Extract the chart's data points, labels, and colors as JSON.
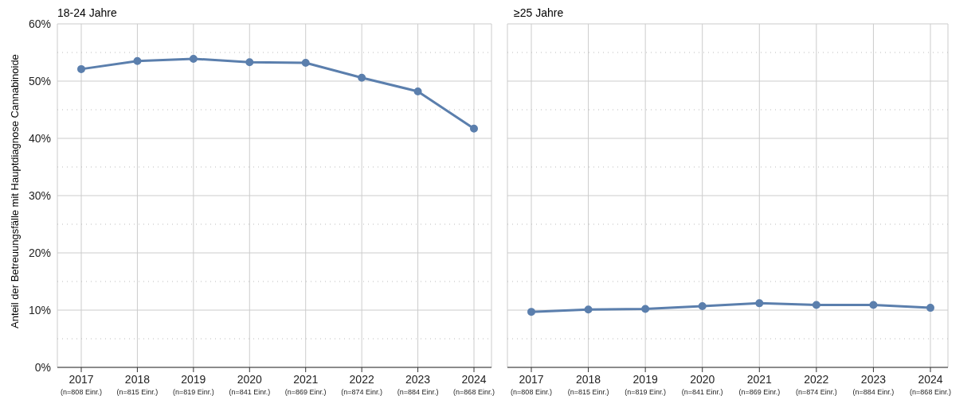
{
  "chart_data": [
    {
      "type": "line",
      "title": "18-24 Jahre",
      "ylabel": "Anteil der Betreuungsfälle mit Hauptdiagnose Cannabinoide",
      "categories": [
        "2017 (n=808 Einr.)",
        "2018 (n=815 Einr.)",
        "2019 (n=819 Einr.)",
        "2020 (n=841 Einr.)",
        "2021 (n=869 Einr.)",
        "2022 (n=874 Einr.)",
        "2023 (n=884 Einr.)",
        "2024 (n=868 Einr.)"
      ],
      "series": [
        {
          "color": "#5b7fad",
          "values": [
            52.1,
            53.5,
            53.9,
            53.3,
            53.2,
            50.6,
            48.2,
            41.7
          ]
        }
      ],
      "ylim": [
        0,
        60
      ],
      "yticks": [
        {
          "value": 0,
          "label": "0%"
        },
        {
          "value": 5,
          "label": null
        },
        {
          "value": 10,
          "label": "10%"
        },
        {
          "value": 15,
          "label": null
        },
        {
          "value": 20,
          "label": "20%"
        },
        {
          "value": 25,
          "label": null
        },
        {
          "value": 30,
          "label": "30%"
        },
        {
          "value": 35,
          "label": null
        },
        {
          "value": 40,
          "label": "40%"
        },
        {
          "value": 45,
          "label": null
        },
        {
          "value": 50,
          "label": "50%"
        },
        {
          "value": 55,
          "label": null
        },
        {
          "value": 60,
          "label": "60%"
        }
      ],
      "grid": true,
      "marker": "circle",
      "line_style": "solid"
    },
    {
      "type": "line",
      "title": "≥25 Jahre",
      "categories": [
        "2017 (n=808 Einr.)",
        "2018 (n=815 Einr.)",
        "2019 (n=819 Einr.)",
        "2020 (n=841 Einr.)",
        "2021 (n=869 Einr.)",
        "2022 (n=874 Einr.)",
        "2023 (n=884 Einr.)",
        "2024 (n=868 Einr.)"
      ],
      "series": [
        {
          "color": "#5b7fad",
          "values": [
            9.7,
            10.1,
            10.2,
            10.7,
            11.2,
            10.9,
            10.9,
            10.4
          ]
        }
      ],
      "ylim": [
        0,
        60
      ],
      "yticks": [
        {
          "value": 0,
          "label": null
        },
        {
          "value": 5,
          "label": null
        },
        {
          "value": 10,
          "label": null
        },
        {
          "value": 15,
          "label": null
        },
        {
          "value": 20,
          "label": null
        },
        {
          "value": 25,
          "label": null
        },
        {
          "value": 30,
          "label": null
        },
        {
          "value": 35,
          "label": null
        },
        {
          "value": 40,
          "label": null
        },
        {
          "value": 45,
          "label": null
        },
        {
          "value": 50,
          "label": null
        },
        {
          "value": 55,
          "label": null
        },
        {
          "value": 60,
          "label": null
        }
      ],
      "grid": true,
      "marker": "circle",
      "line_style": "solid",
      "tick_labels": "x"
    }
  ]
}
